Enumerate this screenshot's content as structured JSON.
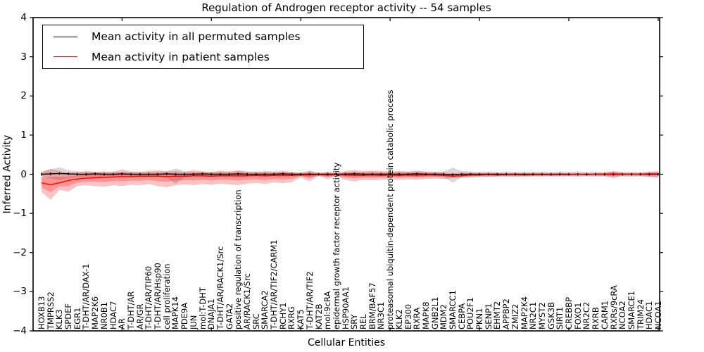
{
  "chart_data": {
    "type": "line",
    "title": "Regulation of Androgen receptor activity -- 54 samples",
    "xlabel": "Cellular Entities",
    "ylabel": "Inferred Activity",
    "ylim": [
      -4,
      4
    ],
    "y_tick_values": [
      4,
      3,
      2,
      1,
      0,
      -1,
      -2,
      -3,
      -4
    ],
    "y_tick_labels": [
      "4",
      "3",
      "2",
      "1",
      "0",
      "−1",
      "−2",
      "−3",
      "−4"
    ],
    "x_major_ticks": [
      10,
      20,
      30,
      40,
      50,
      60,
      70
    ],
    "legend_position": "upper left",
    "grid": false,
    "categories": [
      "HOXB13",
      "TMPRSS2",
      "KLK3",
      "SPDEF",
      "EGR1",
      "T-DHT/AR/DAX-1",
      "MAP2K6",
      "NR0B1",
      "HDAC7",
      "AR",
      "T-DHT/AR",
      "AR/GR",
      "T-DHT/AR/TIP60",
      "T-DHT/AR/Hsp90",
      "cell proliferation",
      "MAPK14",
      "PDE9A",
      "JUN",
      "mol:T-DHT",
      "DNAJA1",
      "T-DHT/AR/RACK1/Src",
      "GATA2",
      "positive regulation of transcription",
      "AR/RACK1/Src",
      "SRC",
      "SMARCA2",
      "T-DHT/AR/TIF2/CARM1",
      "RCHY1",
      "RXRG",
      "KAT5",
      "T-DHT/AR/TIF2",
      "KAT2B",
      "mol:9cRA",
      "epidermal growth factor receptor activity",
      "HSP90AA1",
      "SRY",
      "REL",
      "BRM/BAF57",
      "NR3C1",
      "proteasomal ubiquitin-dependent protein catabolic process",
      "KLK2",
      "EP300",
      "RXRA",
      "MAPK8",
      "GNB2L1",
      "MDM2",
      "SMARCC1",
      "CEBPA",
      "POU2F1",
      "PKN1",
      "SENP1",
      "EHMT2",
      "APPBP2",
      "ZMIZ2",
      "MAP2K4",
      "NR2C1",
      "MYST2",
      "GSK3B",
      "SIRT1",
      "CREBBP",
      "FOXO1",
      "NR2C2",
      "RXRB",
      "CARM1",
      "RXRs/9cRA",
      "NCOA2",
      "SMARCE1",
      "TRIM24",
      "HDAC1",
      "NCOA1"
    ],
    "series": [
      {
        "name": "Mean activity in all permuted samples",
        "color": "#000000",
        "band_color": "rgba(128,128,128,0.30)",
        "band_inner": false,
        "markers": true,
        "mean": [
          0.0,
          0.01,
          0.02,
          0.01,
          0.0,
          0.0,
          0.01,
          0.0,
          0.0,
          0.01,
          0.0,
          0.0,
          0.0,
          0.0,
          0.01,
          0.0,
          0.0,
          0.0,
          0.01,
          0.0,
          0.0,
          0.0,
          0.01,
          0.0,
          0.0,
          0.0,
          0.0,
          0.01,
          0.0,
          0.0,
          0.0,
          0.0,
          0.0,
          0.0,
          0.0,
          0.01,
          0.0,
          0.0,
          0.0,
          0.0,
          0.0,
          0.0,
          0.01,
          0.0,
          0.0,
          0.0,
          -0.01,
          0.0,
          0.0,
          0.0,
          0.0,
          0.0,
          0.0,
          0.0,
          0.0,
          0.0,
          0.0,
          0.0,
          0.0,
          0.0,
          0.0,
          0.0,
          0.0,
          0.0,
          0.0,
          0.0,
          0.0,
          0.0,
          0.0,
          0.0
        ],
        "band_upper": [
          0.06,
          0.12,
          0.18,
          0.1,
          0.07,
          0.06,
          0.07,
          0.06,
          0.06,
          0.07,
          0.06,
          0.06,
          0.07,
          0.06,
          0.08,
          0.15,
          0.08,
          0.06,
          0.07,
          0.06,
          0.07,
          0.06,
          0.08,
          0.06,
          0.07,
          0.06,
          0.07,
          0.06,
          0.06,
          0.05,
          0.08,
          0.05,
          0.06,
          0.05,
          0.06,
          0.07,
          0.06,
          0.07,
          0.06,
          0.06,
          0.07,
          0.06,
          0.07,
          0.06,
          0.06,
          0.07,
          0.17,
          0.08,
          0.07,
          0.06,
          0.07,
          0.06,
          0.07,
          0.06,
          0.07,
          0.06,
          0.07,
          0.06,
          0.07,
          0.06,
          0.07,
          0.06,
          0.07,
          0.06,
          0.07,
          0.06,
          0.07,
          0.06,
          0.07,
          0.08
        ],
        "band_lower": [
          -0.06,
          -0.1,
          -0.15,
          -0.1,
          -0.07,
          -0.06,
          -0.07,
          -0.06,
          -0.06,
          -0.07,
          -0.06,
          -0.06,
          -0.07,
          -0.06,
          -0.08,
          -0.25,
          -0.08,
          -0.06,
          -0.07,
          -0.06,
          -0.07,
          -0.06,
          -0.08,
          -0.06,
          -0.07,
          -0.06,
          -0.07,
          -0.06,
          -0.06,
          -0.05,
          -0.08,
          -0.05,
          -0.06,
          -0.05,
          -0.06,
          -0.07,
          -0.06,
          -0.07,
          -0.06,
          -0.06,
          -0.07,
          -0.06,
          -0.07,
          -0.06,
          -0.06,
          -0.07,
          -0.22,
          -0.08,
          -0.07,
          -0.06,
          -0.07,
          -0.06,
          -0.07,
          -0.06,
          -0.07,
          -0.06,
          -0.07,
          -0.06,
          -0.07,
          -0.06,
          -0.07,
          -0.06,
          -0.07,
          -0.06,
          -0.07,
          -0.06,
          -0.07,
          -0.06,
          -0.07,
          -0.08
        ]
      },
      {
        "name": "Mean activity in patient samples",
        "color": "#ff0000",
        "band_color": "rgba(255,0,0,0.24)",
        "band_inner": true,
        "markers": false,
        "mean": [
          -0.22,
          -0.27,
          -0.22,
          -0.16,
          -0.12,
          -0.1,
          -0.09,
          -0.08,
          -0.07,
          -0.06,
          -0.06,
          -0.05,
          -0.05,
          -0.05,
          -0.06,
          -0.05,
          -0.05,
          -0.04,
          -0.04,
          -0.05,
          -0.04,
          -0.04,
          -0.04,
          -0.04,
          -0.03,
          -0.04,
          -0.03,
          -0.03,
          -0.03,
          -0.02,
          -0.02,
          -0.01,
          -0.02,
          -0.01,
          -0.02,
          -0.03,
          -0.03,
          -0.02,
          -0.03,
          -0.02,
          -0.03,
          -0.02,
          -0.03,
          -0.02,
          -0.02,
          -0.03,
          -0.05,
          -0.04,
          -0.02,
          -0.02,
          -0.01,
          -0.02,
          -0.01,
          -0.01,
          -0.02,
          -0.01,
          -0.01,
          -0.01,
          -0.01,
          -0.01,
          0.0,
          -0.01,
          0.0,
          0.0,
          0.01,
          0.0,
          0.0,
          0.0,
          0.01,
          0.01
        ],
        "band_upper": [
          0.06,
          0.14,
          0.08,
          0.04,
          0.06,
          0.08,
          0.06,
          0.07,
          0.06,
          0.12,
          0.07,
          0.06,
          0.08,
          0.1,
          0.07,
          0.08,
          0.06,
          0.1,
          0.07,
          0.06,
          0.09,
          0.07,
          0.1,
          0.07,
          0.06,
          0.08,
          0.06,
          0.09,
          0.06,
          0.03,
          0.09,
          0.02,
          0.06,
          0.02,
          0.08,
          0.1,
          0.08,
          0.09,
          0.08,
          0.07,
          0.08,
          0.07,
          0.09,
          0.07,
          0.06,
          0.05,
          0.03,
          0.04,
          0.04,
          0.03,
          0.03,
          0.03,
          0.02,
          0.03,
          0.02,
          0.03,
          0.02,
          0.02,
          0.03,
          0.02,
          0.02,
          0.02,
          0.02,
          0.03,
          0.08,
          0.03,
          0.02,
          0.02,
          0.05,
          0.06
        ],
        "band_lower": [
          -0.45,
          -0.65,
          -0.4,
          -0.45,
          -0.3,
          -0.28,
          -0.3,
          -0.32,
          -0.28,
          -0.3,
          -0.27,
          -0.28,
          -0.25,
          -0.3,
          -0.33,
          -0.28,
          -0.26,
          -0.28,
          -0.25,
          -0.27,
          -0.24,
          -0.26,
          -0.28,
          -0.24,
          -0.22,
          -0.25,
          -0.21,
          -0.23,
          -0.2,
          -0.08,
          -0.18,
          -0.04,
          -0.12,
          -0.05,
          -0.15,
          -0.18,
          -0.15,
          -0.16,
          -0.14,
          -0.13,
          -0.15,
          -0.13,
          -0.14,
          -0.12,
          -0.11,
          -0.12,
          -0.1,
          -0.09,
          -0.08,
          -0.07,
          -0.06,
          -0.06,
          -0.05,
          -0.06,
          -0.05,
          -0.05,
          -0.04,
          -0.05,
          -0.04,
          -0.04,
          -0.04,
          -0.04,
          -0.04,
          -0.05,
          -0.1,
          -0.04,
          -0.04,
          -0.04,
          -0.07,
          -0.08
        ]
      }
    ]
  }
}
